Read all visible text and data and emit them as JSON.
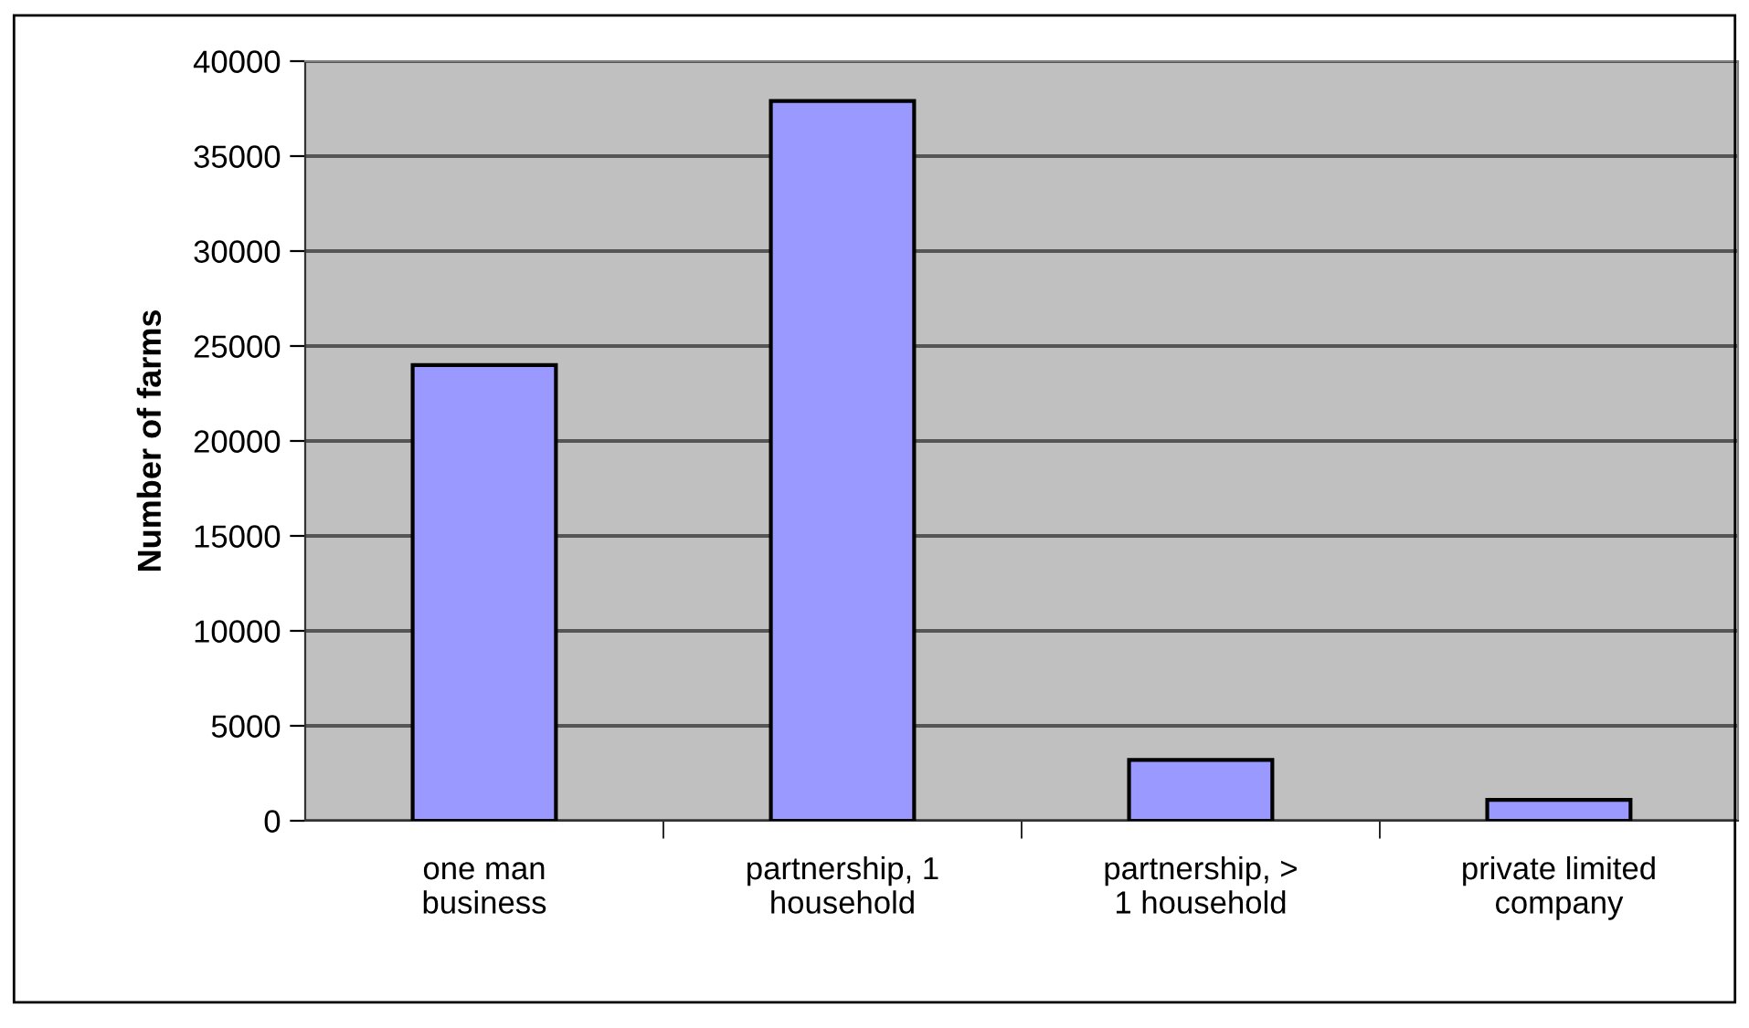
{
  "chart_data": {
    "type": "bar",
    "ylabel": "Number of farms",
    "categories": [
      "one man\nbusiness",
      "partnership, 1\nhousehold",
      "partnership, >\n1 household",
      "private limited\ncompany"
    ],
    "values": [
      24000,
      37900,
      3200,
      1100
    ],
    "color": "#9999ff",
    "ylim": [
      0,
      40000
    ],
    "yticks": [
      0,
      5000,
      10000,
      15000,
      20000,
      25000,
      30000,
      35000,
      40000
    ],
    "grid": "y"
  }
}
